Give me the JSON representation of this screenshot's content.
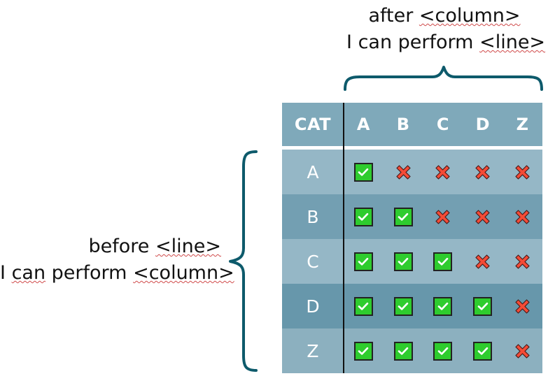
{
  "top_label": {
    "line1": "after <column>",
    "line2": "I can perform <line>"
  },
  "left_label": {
    "line1": "before <line>",
    "line2": "I can perform <column>"
  },
  "matrix": {
    "header_label": "CAT",
    "columns": [
      "A",
      "B",
      "C",
      "D",
      "Z"
    ],
    "rows": [
      {
        "label": "A",
        "values": [
          true,
          false,
          false,
          false,
          false
        ]
      },
      {
        "label": "B",
        "values": [
          true,
          true,
          false,
          false,
          false
        ]
      },
      {
        "label": "C",
        "values": [
          true,
          true,
          true,
          false,
          false
        ]
      },
      {
        "label": "D",
        "values": [
          true,
          true,
          true,
          true,
          false
        ]
      },
      {
        "label": "Z",
        "values": [
          true,
          true,
          true,
          true,
          false
        ]
      }
    ]
  },
  "colors": {
    "header_bg": "#7fa9ba",
    "row_shades": [
      "#95b7c6",
      "#739fb2",
      "#95b7c6",
      "#6797ab",
      "#8cb0bf"
    ],
    "separator": "#ffffff",
    "brace": "#0d5a6b",
    "check_fill": "#2ecc2e",
    "check_border": "#222222",
    "check_mark": "#ffffff",
    "cross_fill": "#f44b36",
    "cross_outline": "#4a1d1d"
  },
  "icons": {
    "allowed": "check-icon",
    "blocked": "cross-icon"
  }
}
